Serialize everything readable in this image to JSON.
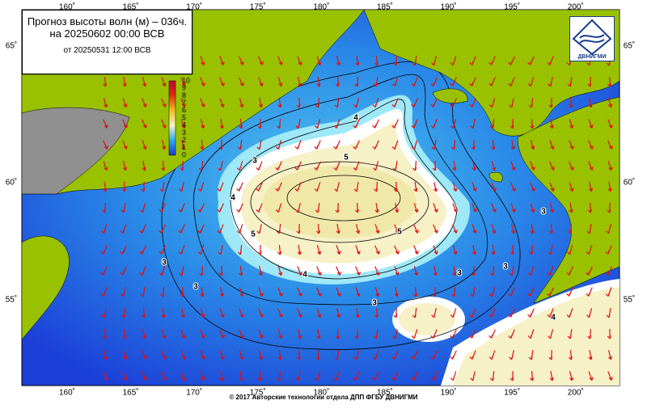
{
  "header": {
    "title": "Прогноз высоты волн (м) – 036ч.",
    "valid": "на 20250602 00:00 ВСВ",
    "issued": "от 20250531 12:00 ВСВ"
  },
  "logo": {
    "text": "ДВНИГМИ"
  },
  "longitude_labels": [
    "160˚",
    "165˚",
    "170˚",
    "175˚",
    "180˚",
    "185˚",
    "190˚",
    "195˚",
    "200˚"
  ],
  "latitude_labels": [
    "65˚",
    "60˚",
    "55˚"
  ],
  "colorbar": {
    "labels": [
      "10",
      "9",
      "8",
      "7",
      "6",
      "5",
      "4",
      "3",
      "2",
      "1",
      "0"
    ]
  },
  "contour_labels": [
    "4",
    "5",
    "5",
    "5",
    "4",
    "4",
    "3",
    "3",
    "3",
    "3",
    "3",
    "3",
    "3",
    "4"
  ],
  "footer": "© 2017 Авторские технологии отдела ДПП ФГБУ ДВНИГМИ"
}
